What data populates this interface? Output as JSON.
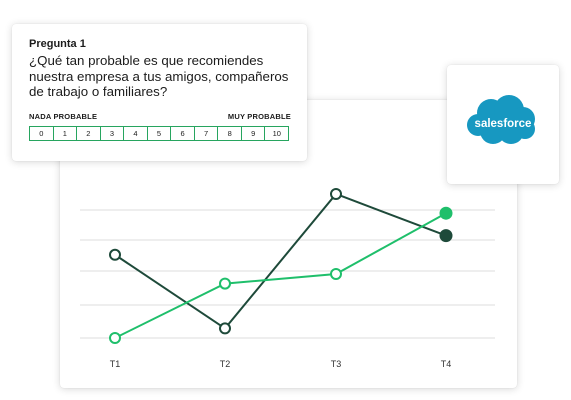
{
  "survey": {
    "question_label": "Pregunta 1",
    "question_text": "¿Qué tan probable es que recomiendes nuestra empresa a tus amigos, compañeros de trabajo o familiares?",
    "scale_left_label": "NADA PROBABLE",
    "scale_right_label": "MUY PROBABLE",
    "scale_options": [
      "0",
      "1",
      "2",
      "3",
      "4",
      "5",
      "6",
      "7",
      "8",
      "9",
      "10"
    ],
    "accent_color": "#27a55f"
  },
  "salesforce": {
    "logo_text": "salesforce",
    "cloud_color": "#1798c1"
  },
  "chart_data": {
    "type": "line",
    "categories": [
      "T1",
      "T2",
      "T3",
      "T4"
    ],
    "ylim": [
      0,
      4
    ],
    "grid": true,
    "series": [
      {
        "color": "#1e4a3a",
        "values": [
          2.6,
          0.3,
          4.5,
          3.2
        ],
        "filled_last": true
      },
      {
        "color": "#1fbf6b",
        "values": [
          0.0,
          1.7,
          2.0,
          3.9
        ],
        "filled_last": true
      }
    ]
  }
}
